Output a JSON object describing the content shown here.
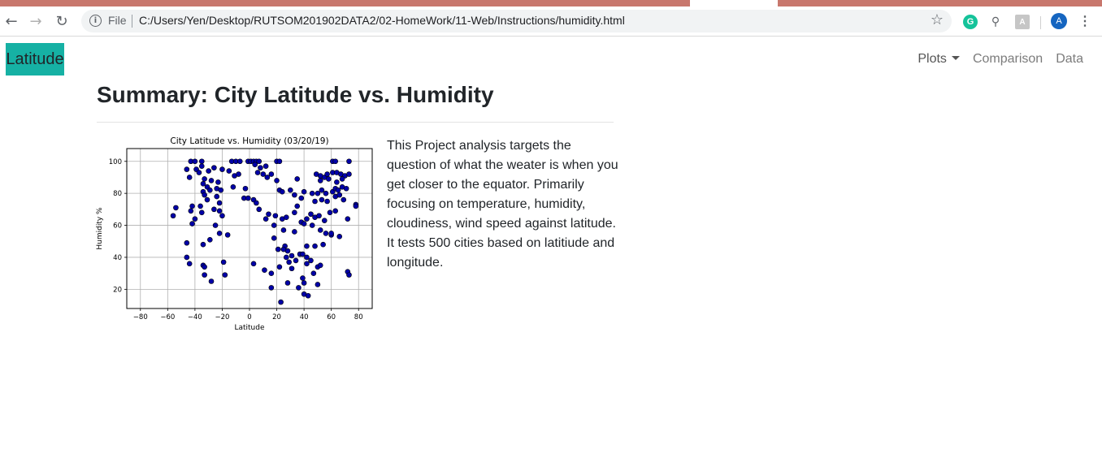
{
  "browser": {
    "scheme": "File",
    "url": "C:/Users/Yen/Desktop/RUTSOM201902DATA2/02-HomeWork/11-Web/Instructions/humidity.html",
    "avatar_letter": "A",
    "icons": [
      "back-arrow-icon",
      "forward-arrow-icon",
      "reload-icon",
      "info-icon",
      "star-icon",
      "grammarly-icon",
      "search-icon",
      "pdf-icon",
      "menu-dots-icon"
    ]
  },
  "navbar": {
    "brand": "Latitude",
    "brand_color": "#16b1a4",
    "links": [
      {
        "label": "Plots",
        "dropdown": true
      },
      {
        "label": "Comparison"
      },
      {
        "label": "Data"
      }
    ]
  },
  "main": {
    "title": "Summary: City Latitude vs. Humidity",
    "description": "This Project analysis targets the question of what the weater is when you get closer to the equator. Primarily focusing on temperature, humidity, cloudiness, wind speed against latitude. It tests 500 cities based on latitiude and longitude."
  },
  "chart_data": {
    "type": "scatter",
    "title": "City Latitude vs. Humidity (03/20/19)",
    "xlabel": "Latitude",
    "ylabel": "Humidity %",
    "xlim": [
      -90,
      90
    ],
    "ylim": [
      8,
      108
    ],
    "xticks": [
      -80,
      -60,
      -40,
      -20,
      0,
      20,
      40,
      60,
      80
    ],
    "yticks": [
      20,
      40,
      60,
      80,
      100
    ],
    "grid": true,
    "marker_color": "#0000a8",
    "edge_color": "#000000",
    "points": [
      [
        -43,
        100
      ],
      [
        -40,
        100
      ],
      [
        -35,
        100
      ],
      [
        -13,
        100
      ],
      [
        -10,
        100
      ],
      [
        -7,
        100
      ],
      [
        -1,
        100
      ],
      [
        1,
        100
      ],
      [
        3,
        100
      ],
      [
        5,
        100
      ],
      [
        7,
        100
      ],
      [
        20,
        100
      ],
      [
        22,
        100
      ],
      [
        61,
        100
      ],
      [
        63,
        100
      ],
      [
        73,
        100
      ],
      [
        -46,
        95
      ],
      [
        -39,
        95
      ],
      [
        -35,
        97
      ],
      [
        -30,
        94
      ],
      [
        -26,
        96
      ],
      [
        -20,
        95
      ],
      [
        -15,
        94
      ],
      [
        -11,
        91
      ],
      [
        4,
        98
      ],
      [
        8,
        96
      ],
      [
        12,
        97
      ],
      [
        -37,
        93
      ],
      [
        -44,
        90
      ],
      [
        -33,
        89
      ],
      [
        -28,
        88
      ],
      [
        -23,
        87
      ],
      [
        -8,
        92
      ],
      [
        6,
        93
      ],
      [
        10,
        92
      ],
      [
        16,
        92
      ],
      [
        13,
        90
      ],
      [
        20,
        88
      ],
      [
        35,
        89
      ],
      [
        49,
        92
      ],
      [
        52,
        91
      ],
      [
        55,
        90
      ],
      [
        57,
        92
      ],
      [
        61,
        93
      ],
      [
        64,
        93
      ],
      [
        67,
        92
      ],
      [
        70,
        91
      ],
      [
        73,
        92
      ],
      [
        52,
        88
      ],
      [
        58,
        89
      ],
      [
        64,
        87
      ],
      [
        68,
        89
      ],
      [
        -34,
        86
      ],
      [
        -31,
        84
      ],
      [
        -29,
        82
      ],
      [
        -34,
        81
      ],
      [
        -33,
        79
      ],
      [
        -24,
        83
      ],
      [
        -21,
        82
      ],
      [
        -12,
        84
      ],
      [
        -3,
        83
      ],
      [
        -4,
        77
      ],
      [
        -1,
        77
      ],
      [
        3,
        76
      ],
      [
        5,
        74
      ],
      [
        22,
        82
      ],
      [
        24,
        81
      ],
      [
        30,
        82
      ],
      [
        33,
        79
      ],
      [
        38,
        77
      ],
      [
        40,
        81
      ],
      [
        46,
        80
      ],
      [
        50,
        80
      ],
      [
        53,
        82
      ],
      [
        56,
        80
      ],
      [
        61,
        81
      ],
      [
        63,
        83
      ],
      [
        65,
        82
      ],
      [
        68,
        84
      ],
      [
        71,
        83
      ],
      [
        48,
        75
      ],
      [
        53,
        76
      ],
      [
        57,
        75
      ],
      [
        63,
        78
      ],
      [
        66,
        79
      ],
      [
        69,
        76
      ],
      [
        -24,
        78
      ],
      [
        -22,
        74
      ],
      [
        -31,
        76
      ],
      [
        -36,
        72
      ],
      [
        -42,
        72
      ],
      [
        -54,
        71
      ],
      [
        7,
        70
      ],
      [
        14,
        67
      ],
      [
        19,
        66
      ],
      [
        24,
        64
      ],
      [
        27,
        65
      ],
      [
        33,
        68
      ],
      [
        35,
        72
      ],
      [
        38,
        62
      ],
      [
        42,
        64
      ],
      [
        45,
        67
      ],
      [
        48,
        65
      ],
      [
        51,
        66
      ],
      [
        55,
        63
      ],
      [
        59,
        68
      ],
      [
        63,
        69
      ],
      [
        -26,
        70
      ],
      [
        -22,
        69
      ],
      [
        -20,
        66
      ],
      [
        -35,
        68
      ],
      [
        -43,
        69
      ],
      [
        -56,
        66
      ],
      [
        -40,
        64
      ],
      [
        -42,
        61
      ],
      [
        -25,
        60
      ],
      [
        -22,
        55
      ],
      [
        -16,
        54
      ],
      [
        12,
        64
      ],
      [
        18,
        60
      ],
      [
        25,
        57
      ],
      [
        33,
        56
      ],
      [
        40,
        61
      ],
      [
        46,
        60
      ],
      [
        52,
        57
      ],
      [
        56,
        55
      ],
      [
        60,
        54
      ],
      [
        66,
        53
      ],
      [
        -29,
        51
      ],
      [
        -34,
        48
      ],
      [
        -46,
        49
      ],
      [
        18,
        52
      ],
      [
        26,
        47
      ],
      [
        28,
        44
      ],
      [
        42,
        47
      ],
      [
        48,
        47
      ],
      [
        54,
        48
      ],
      [
        60,
        55
      ],
      [
        72,
        64
      ],
      [
        78,
        73
      ],
      [
        78,
        72
      ],
      [
        -46,
        40
      ],
      [
        -44,
        36
      ],
      [
        -34,
        35
      ],
      [
        -33,
        34
      ],
      [
        -33,
        29
      ],
      [
        -28,
        25
      ],
      [
        -19,
        37
      ],
      [
        -18,
        29
      ],
      [
        3,
        36
      ],
      [
        11,
        32
      ],
      [
        16,
        30
      ],
      [
        22,
        34
      ],
      [
        27,
        40
      ],
      [
        31,
        41
      ],
      [
        29,
        37
      ],
      [
        34,
        38
      ],
      [
        31,
        33
      ],
      [
        25,
        45
      ],
      [
        21,
        45
      ],
      [
        37,
        42
      ],
      [
        39,
        42
      ],
      [
        42,
        40
      ],
      [
        45,
        38
      ],
      [
        42,
        36
      ],
      [
        50,
        34
      ],
      [
        52,
        35
      ],
      [
        47,
        30
      ],
      [
        28,
        24
      ],
      [
        36,
        21
      ],
      [
        40,
        17
      ],
      [
        43,
        16
      ],
      [
        39,
        27
      ],
      [
        40,
        24
      ],
      [
        50,
        23
      ],
      [
        16,
        21
      ],
      [
        23,
        12
      ],
      [
        72,
        31
      ],
      [
        73,
        29
      ]
    ]
  }
}
